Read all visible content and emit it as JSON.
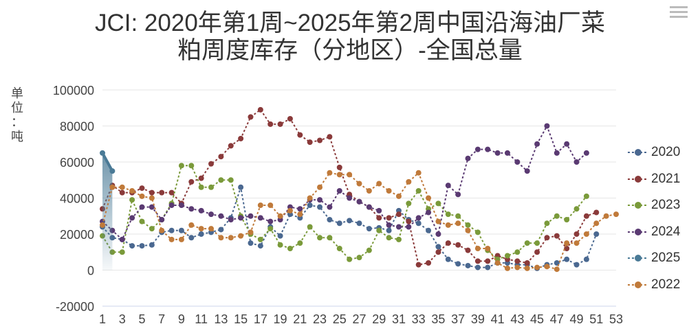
{
  "chart_data": {
    "type": "line",
    "title_line1": "JCI: 2020年第1周~2025年第2周中国沿海油厂菜",
    "title_line2": "粕周度库存（分地区）-全国总量",
    "ylabel_chars": [
      "单",
      "位",
      "：",
      "吨"
    ],
    "ylim": [
      -20000,
      100000
    ],
    "yticks": [
      "100000",
      "80000",
      "60000",
      "40000",
      "20000",
      "0",
      "-20000"
    ],
    "ytick_values": [
      100000,
      80000,
      60000,
      40000,
      20000,
      0,
      -20000
    ],
    "xlim": [
      1,
      53
    ],
    "xticks": [
      "1",
      "3",
      "5",
      "7",
      "9",
      "11",
      "13",
      "15",
      "17",
      "19",
      "21",
      "23",
      "25",
      "27",
      "29",
      "31",
      "33",
      "35",
      "37",
      "39",
      "41",
      "43",
      "45",
      "47",
      "49",
      "51",
      "53"
    ],
    "grid": "horizontal",
    "legend_position": "right",
    "series": [
      {
        "name": "2020",
        "color": "#4a6890",
        "values": [
          24000,
          18000,
          17000,
          13500,
          13500,
          14000,
          21000,
          22000,
          22000,
          18000,
          20000,
          21000,
          22500,
          29000,
          46000,
          15000,
          13500,
          24000,
          19000,
          31000,
          29000,
          36000,
          35000,
          28000,
          26000,
          27500,
          26000,
          23000,
          23500,
          22000,
          33000,
          28000,
          26000,
          22000,
          13000,
          6000,
          3500,
          2500,
          1500,
          1500,
          4000,
          4000,
          3000,
          3000,
          1000,
          3000,
          4000,
          6000,
          3000,
          6000,
          20000
        ]
      },
      {
        "name": "2021",
        "color": "#8a3a3a",
        "values": [
          34000,
          47000,
          43000,
          43000,
          45500,
          43000,
          43000,
          43000,
          37000,
          49000,
          51000,
          59000,
          63000,
          69000,
          73000,
          85000,
          89000,
          81000,
          81000,
          84000,
          75000,
          71000,
          72000,
          74000,
          57000,
          42000,
          38000,
          35000,
          29000,
          29000,
          31000,
          27000,
          3000,
          4000,
          10000,
          15000,
          14000,
          11000,
          5000,
          5000,
          8000,
          6000,
          5000,
          4000,
          10000,
          18000,
          19000,
          12000,
          20000,
          30000,
          32000
        ]
      },
      {
        "name": "2023",
        "color": "#7a9a3a",
        "values": [
          19000,
          10000,
          10000,
          39000,
          27000,
          23000,
          28000,
          37000,
          58000,
          58000,
          46000,
          46000,
          50000,
          50000,
          30000,
          20000,
          17000,
          23000,
          14000,
          12000,
          15000,
          24000,
          18000,
          18000,
          12000,
          6000,
          7000,
          11000,
          22000,
          18000,
          17000,
          37000,
          44000,
          34000,
          37000,
          31000,
          30000,
          25000,
          21000,
          11000,
          6000,
          8000,
          10000,
          15000,
          15000,
          26000,
          30000,
          28000,
          34000,
          41000
        ]
      },
      {
        "name": "2024",
        "color": "#5a3a72",
        "values": [
          27000,
          22000,
          17000,
          29000,
          35000,
          35000,
          28000,
          36000,
          36000,
          34000,
          33000,
          31000,
          30000,
          28000,
          29000,
          30000,
          29000,
          27000,
          28000,
          35000,
          34000,
          39000,
          39000,
          35000,
          44000,
          40000,
          38000,
          35000,
          33000,
          25000,
          24000,
          24000,
          29000,
          32000,
          20000,
          47000,
          42000,
          62000,
          67000,
          67000,
          65000,
          65000,
          60000,
          55000,
          70000,
          80000,
          65000,
          70000,
          60000,
          65000
        ]
      },
      {
        "name": "2025",
        "color": "#4a7a96",
        "values": [
          65000,
          55000
        ]
      },
      {
        "name": "2022",
        "color": "#c07a3a",
        "values": [
          25000,
          46000,
          46000,
          44000,
          41000,
          40000,
          22000,
          17000,
          17000,
          25000,
          23000,
          23000,
          18000,
          18000,
          19000,
          21000,
          36000,
          36000,
          30000,
          33000,
          31000,
          40000,
          46000,
          54000,
          53000,
          53000,
          48000,
          44000,
          48000,
          44000,
          41000,
          49000,
          54000,
          40000,
          27000,
          25000,
          26000,
          22000,
          12000,
          12000,
          4000,
          1000,
          1500,
          1000,
          1500,
          2000,
          500,
          15000,
          15000,
          20000,
          26000,
          30000,
          31000
        ]
      }
    ]
  }
}
